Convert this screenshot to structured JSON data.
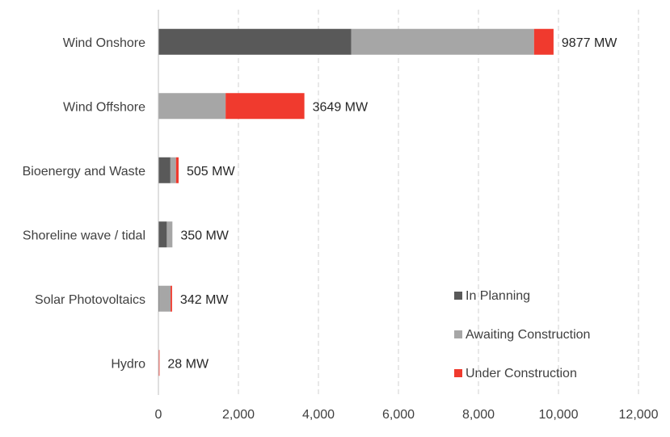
{
  "chart_data": {
    "type": "bar",
    "orientation": "horizontal",
    "stacked": true,
    "categories": [
      "Wind Onshore",
      "Wind Offshore",
      "Bioenergy and Waste",
      "Shoreline wave / tidal",
      "Solar Photovoltaics",
      "Hydro"
    ],
    "series": [
      {
        "name": "In Planning",
        "color": "#595959",
        "values": [
          4820,
          0,
          300,
          210,
          20,
          5
        ]
      },
      {
        "name": "Awaiting Construction",
        "color": "#a6a6a6",
        "values": [
          4570,
          1680,
          140,
          140,
          285,
          8
        ]
      },
      {
        "name": "Under Construction",
        "color": "#f03a2e",
        "values": [
          487,
          1969,
          65,
          0,
          37,
          15
        ]
      }
    ],
    "totals": [
      "9877 MW",
      "3649 MW",
      "505 MW",
      "350 MW",
      "342 MW",
      "28 MW"
    ],
    "xlim": [
      0,
      12000
    ],
    "xticks": [
      0,
      2000,
      4000,
      6000,
      8000,
      10000,
      12000
    ],
    "xtick_labels": [
      "0",
      "2,000",
      "4,000",
      "6,000",
      "8,000",
      "10,000",
      "12,000"
    ],
    "grid": "vertical dashed",
    "legend_position": "bottom-right",
    "title": "",
    "xlabel": "",
    "ylabel": ""
  }
}
